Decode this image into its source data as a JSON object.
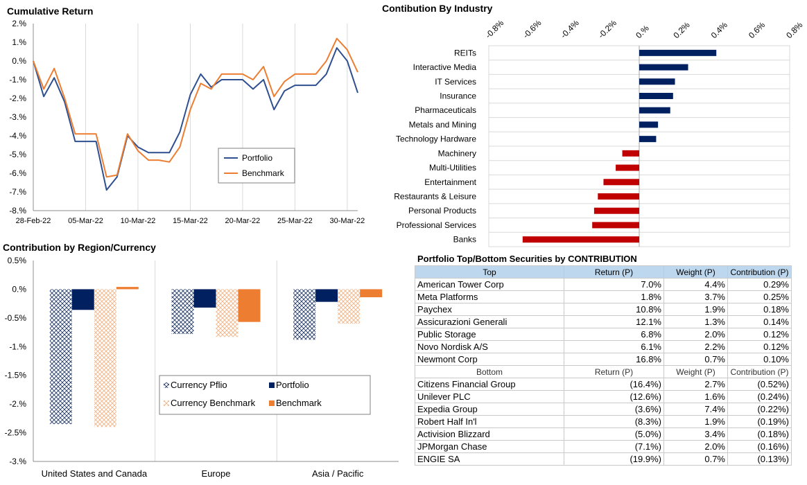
{
  "chart_data": [
    {
      "id": "cumulative",
      "type": "line",
      "title": "Cumulative Return",
      "xlabel": "",
      "ylabel": "",
      "ylim": [
        -8,
        2
      ],
      "yticks": [
        "2.%",
        "1.%",
        "0.%",
        "-1.%",
        "-2.%",
        "-3.%",
        "-4.%",
        "-5.%",
        "-6.%",
        "-7.%",
        "-8.%"
      ],
      "ytick_values": [
        2,
        1,
        0,
        -1,
        -2,
        -3,
        -4,
        -5,
        -6,
        -7,
        -8
      ],
      "xticks": [
        "28-Feb-22",
        "05-Mar-22",
        "10-Mar-22",
        "15-Mar-22",
        "20-Mar-22",
        "25-Mar-22",
        "30-Mar-22"
      ],
      "xtick_index": [
        0,
        5,
        10,
        15,
        20,
        25,
        30
      ],
      "n_points": 32,
      "grid": "vertical",
      "legend": "center-right",
      "series": [
        {
          "name": "Portfolio",
          "color": "#2e4f8f",
          "values": [
            0,
            -1.9,
            -0.9,
            -2.2,
            -4.3,
            -4.3,
            -4.3,
            -6.9,
            -6.2,
            -4.0,
            -4.6,
            -4.9,
            -4.9,
            -4.9,
            -3.8,
            -1.8,
            -0.7,
            -1.4,
            -1.0,
            -1.0,
            -1.0,
            -1.5,
            -1.0,
            -2.6,
            -1.6,
            -1.3,
            -1.3,
            -1.3,
            -0.7,
            0.7,
            0.0,
            -1.7
          ]
        },
        {
          "name": "Benchmark",
          "color": "#ed7d31",
          "values": [
            0,
            -1.5,
            -0.4,
            -2.0,
            -3.9,
            -3.9,
            -3.9,
            -6.2,
            -6.1,
            -3.9,
            -4.8,
            -5.3,
            -5.3,
            -5.4,
            -4.6,
            -2.6,
            -1.2,
            -1.5,
            -0.7,
            -0.7,
            -0.7,
            -1.0,
            -0.3,
            -1.9,
            -1.1,
            -0.7,
            -0.7,
            -0.7,
            0.0,
            1.2,
            0.6,
            -0.6
          ]
        }
      ]
    },
    {
      "id": "industry",
      "type": "bar",
      "orientation": "horizontal",
      "title": "Contibution By Industry",
      "xlim": [
        -0.8,
        0.8
      ],
      "xticks": [
        "-0.8%",
        "-0.6%",
        "-0.4%",
        "-0.2%",
        "0.%",
        "0.2%",
        "0.4%",
        "0.6%",
        "0.8%"
      ],
      "xtick_values": [
        -0.8,
        -0.6,
        -0.4,
        -0.2,
        0,
        0.2,
        0.4,
        0.6,
        0.8
      ],
      "categories": [
        "REITs",
        "Interactive Media",
        "IT Services",
        "Insurance",
        "Pharmaceuticals",
        "Metals and Mining",
        "Technology Hardware",
        "Machinery",
        "Multi-Utilities",
        "Entertainment",
        "Restaurants & Leisure",
        "Personal Products",
        "Professional Services",
        "Banks"
      ],
      "values": [
        0.41,
        0.26,
        0.19,
        0.18,
        0.165,
        0.1,
        0.09,
        -0.09,
        -0.125,
        -0.19,
        -0.22,
        -0.24,
        -0.25,
        -0.62
      ],
      "colors": {
        "positive": "#002060",
        "negative": "#c00000"
      }
    },
    {
      "id": "region",
      "type": "bar",
      "title": "Contribution by Region/Currency",
      "ylim": [
        -3,
        0.5
      ],
      "yticks": [
        "0.5%",
        "0.%",
        "-0.5%",
        "-1.%",
        "-1.5%",
        "-2.%",
        "-2.5%",
        "-3.%"
      ],
      "ytick_values": [
        0.5,
        0,
        -0.5,
        -1,
        -1.5,
        -2,
        -2.5,
        -3
      ],
      "categories": [
        "United States and Canada",
        "Europe",
        "Asia / Pacific"
      ],
      "legend": "center-right",
      "series": [
        {
          "name": "Currency Pflio",
          "color": "#1f3864",
          "pattern": "crosshatch",
          "values": [
            -2.35,
            -0.78,
            -0.88
          ]
        },
        {
          "name": "Portfolio",
          "color": "#002060",
          "pattern": "solid",
          "values": [
            -0.36,
            -0.32,
            -0.22
          ]
        },
        {
          "name": "Currency Benchmark",
          "color": "#f4b183",
          "pattern": "crosshatch",
          "values": [
            -2.4,
            -0.83,
            -0.6
          ]
        },
        {
          "name": "Benchmark",
          "color": "#ed7d31",
          "pattern": "solid",
          "values": [
            0.04,
            -0.57,
            -0.14
          ]
        }
      ]
    },
    {
      "id": "securities",
      "type": "table",
      "title": "Portfolio Top/Bottom Securities by CONTRIBUTION",
      "top_headers": [
        "Top",
        "Return (P)",
        "Weight (P)",
        "Contribution (P)"
      ],
      "top_rows": [
        [
          "American Tower Corp",
          "7.0%",
          "4.4%",
          "0.29%"
        ],
        [
          "Meta Platforms",
          "1.8%",
          "3.7%",
          "0.25%"
        ],
        [
          "Paychex",
          "10.8%",
          "1.9%",
          "0.18%"
        ],
        [
          "Assicurazioni Generali",
          "12.1%",
          "1.3%",
          "0.14%"
        ],
        [
          "Public Storage",
          "6.8%",
          "2.0%",
          "0.12%"
        ],
        [
          "Novo Nordisk A/S",
          "6.1%",
          "2.2%",
          "0.12%"
        ],
        [
          "Newmont Corp",
          "16.8%",
          "0.7%",
          "0.10%"
        ]
      ],
      "bottom_headers": [
        "Bottom",
        "Return (P)",
        "Weight (P)",
        "Contribution (P)"
      ],
      "bottom_rows": [
        [
          "Citizens Financial Group",
          "(16.4%)",
          "2.7%",
          "(0.52%)"
        ],
        [
          "Unilever PLC",
          "(12.6%)",
          "1.6%",
          "(0.24%)"
        ],
        [
          "Expedia Group",
          "(3.6%)",
          "7.4%",
          "(0.22%)"
        ],
        [
          "Robert Half In'l",
          "(8.3%)",
          "1.9%",
          "(0.19%)"
        ],
        [
          "Activision Blizzard",
          "(5.0%)",
          "3.4%",
          "(0.18%)"
        ],
        [
          "JPMorgan Chase",
          "(7.1%)",
          "2.0%",
          "(0.16%)"
        ],
        [
          "ENGIE SA",
          "(19.9%)",
          "0.7%",
          "(0.13%)"
        ]
      ]
    }
  ]
}
